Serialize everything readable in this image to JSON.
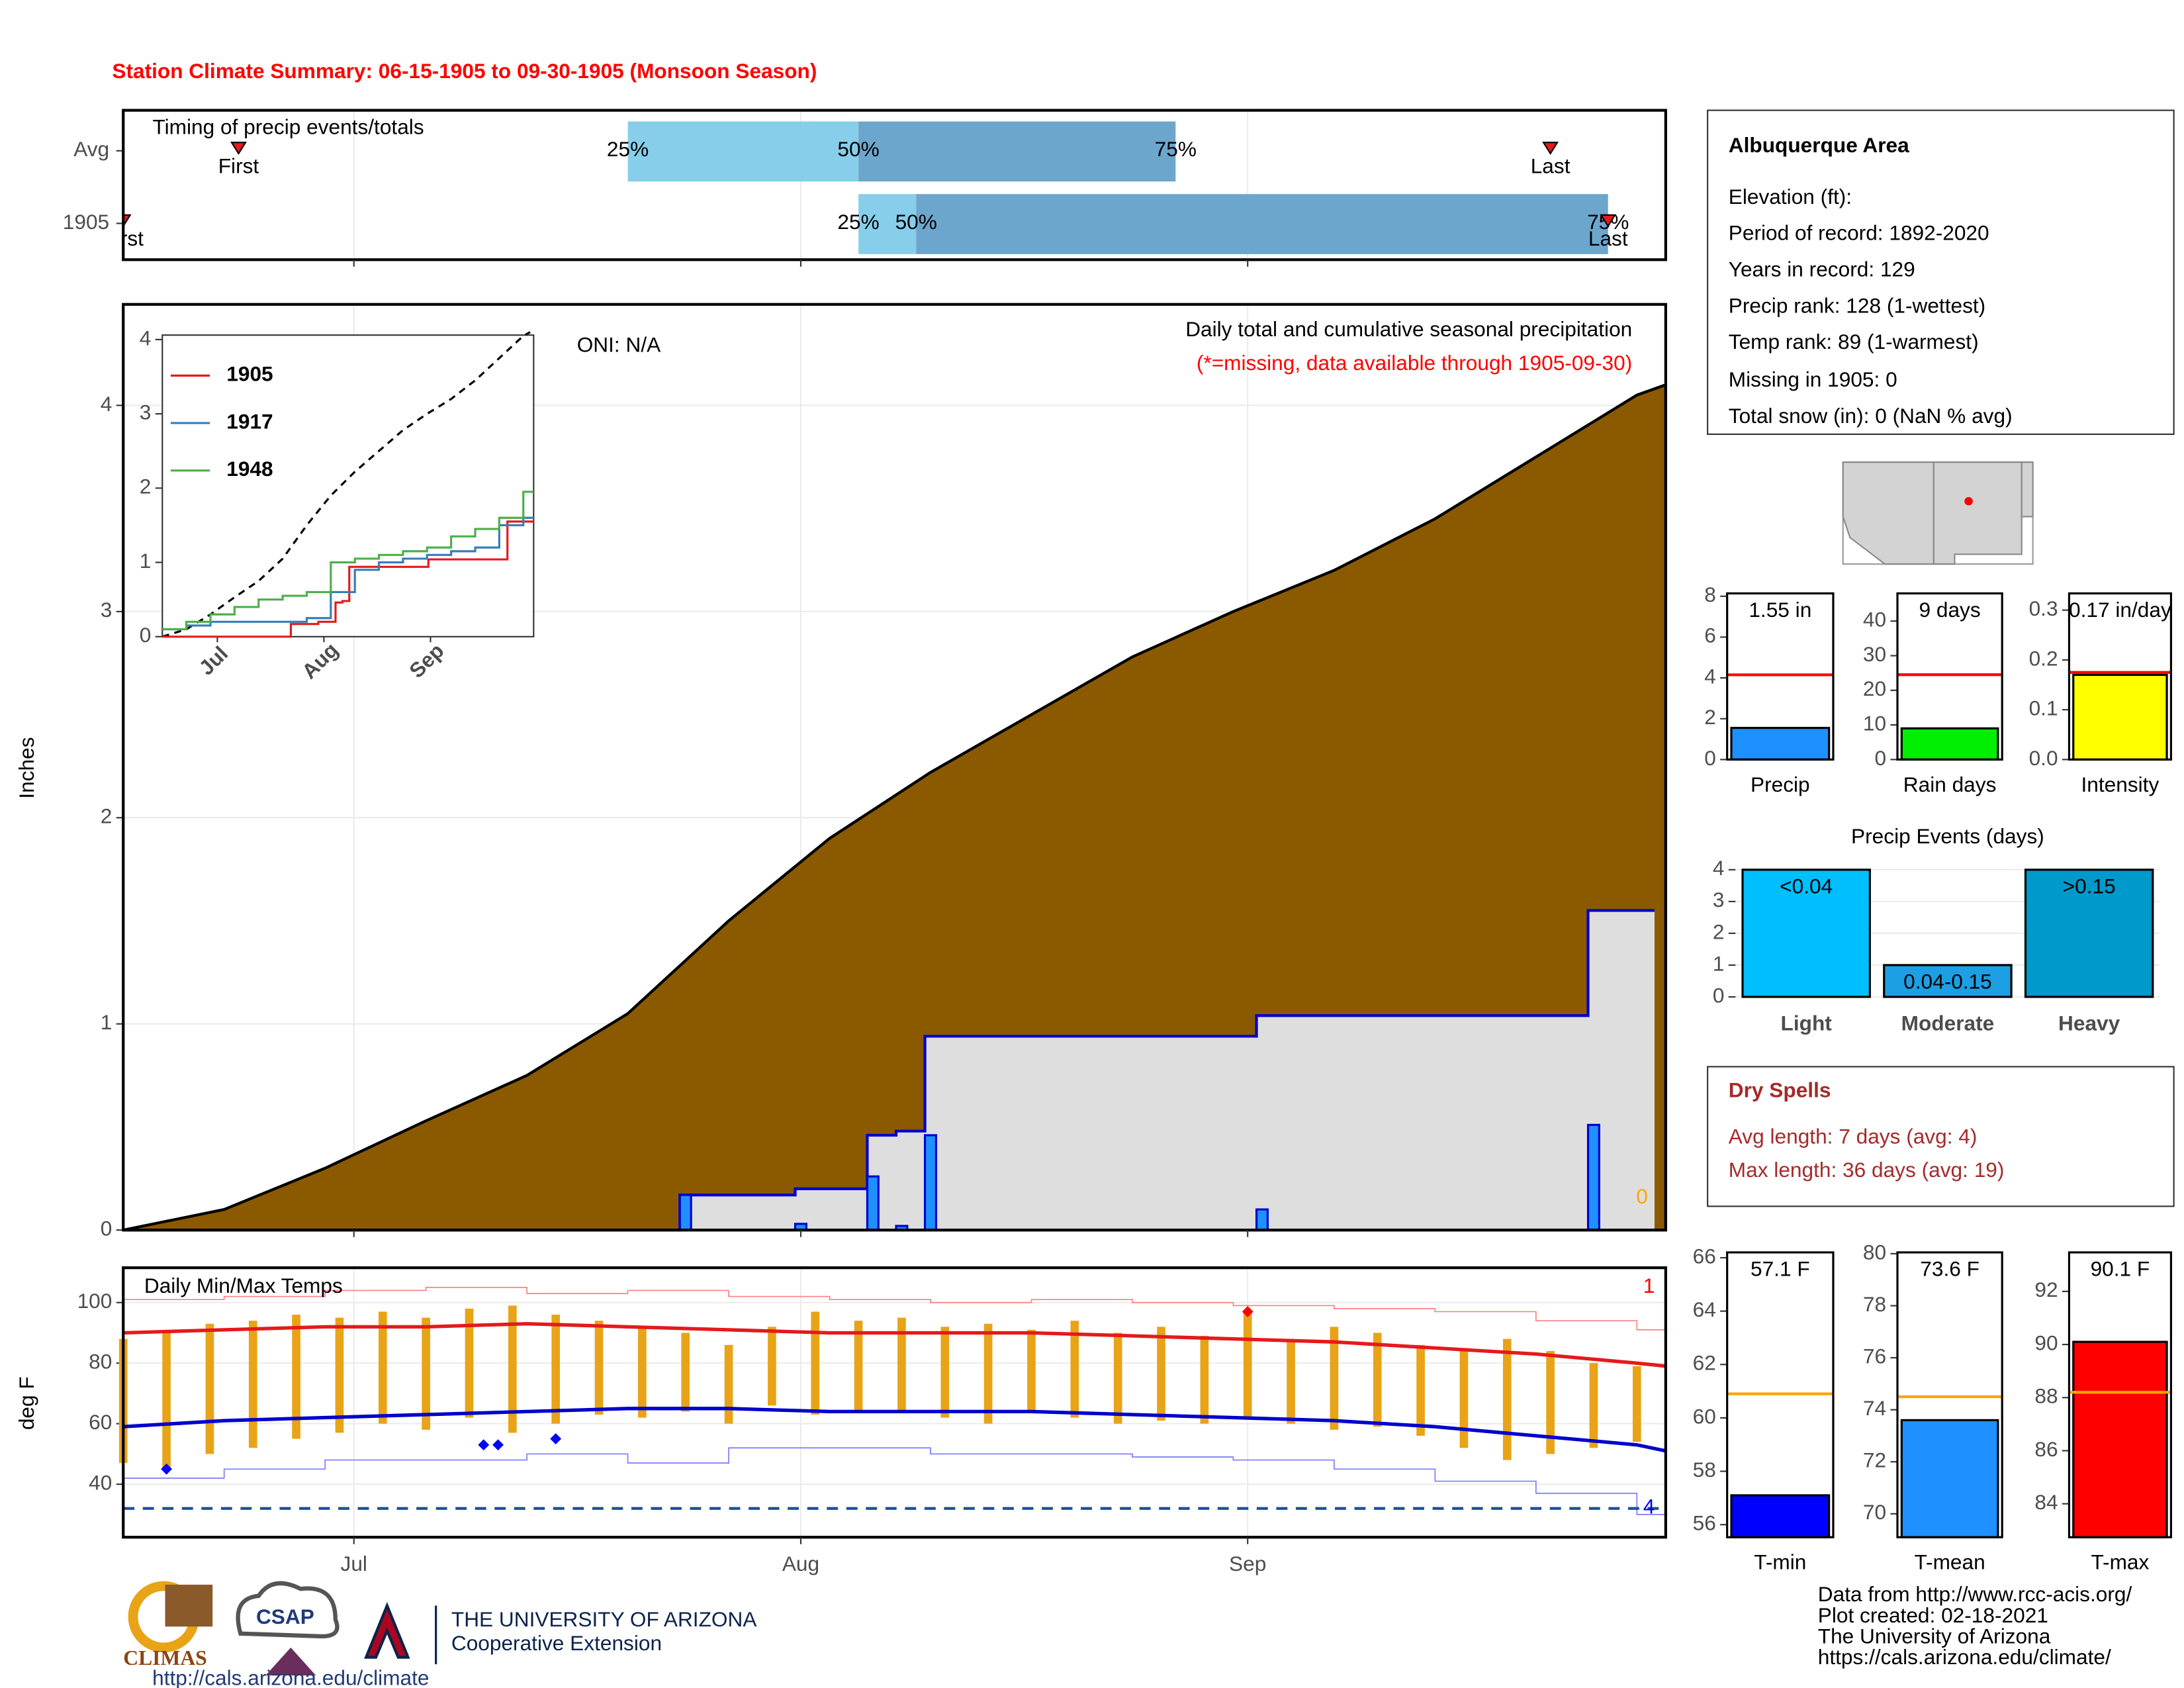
{
  "title": "Station Climate Summary: 06-15-1905 to 09-30-1905 (Monsoon Season)",
  "info": {
    "title": "Albuquerque Area",
    "lines": [
      "Elevation (ft):",
      "Period of record: 1892-2020",
      "Years in record: 129",
      "Precip rank: 128 (1-wettest)",
      "Temp rank: 89 (1-warmest)",
      "Missing in 1905: 0",
      "Total snow (in): 0 (NaN % avg)"
    ]
  },
  "dry_spells": {
    "title": "Dry Spells",
    "lines": [
      "Avg length: 7 days (avg: 4)",
      "Max length: 36 days (avg: 19)"
    ]
  },
  "footer": [
    "Data from http://www.rcc-acis.org/",
    "Plot created: 02-18-2021",
    "The University of Arizona",
    "https://cals.arizona.edu/climate/"
  ],
  "logos": {
    "climas": "CLIMAS",
    "csap": "CSAP",
    "csap_url": "http://cals.arizona.edu/climate",
    "ua": "THE UNIVERSITY OF ARIZONA",
    "ext": "Cooperative Extension"
  },
  "chart_data": [
    {
      "type": "timing",
      "title": "Timing of precip events/totals",
      "categories": [
        "Avg",
        "1905"
      ],
      "xlim": [
        "1905-06-15",
        "1905-09-30"
      ],
      "xticks": [
        "1905-07-01",
        "1905-08-01",
        "1905-09-01"
      ],
      "grid": true,
      "labels": {
        "first": "First",
        "p25": "25%",
        "p50": "50%",
        "p75": "75%",
        "last": "Last"
      },
      "colors": {
        "early": "#87ceeb",
        "late": "#6ca6cd",
        "marker": "#e41a1c"
      },
      "rows": [
        {
          "first": "1905-06-23",
          "p25": "1905-07-20",
          "p50": "1905-08-05",
          "p75": "1905-08-27",
          "last": "1905-09-22"
        },
        {
          "first": "1905-06-15",
          "p25": "1905-08-05",
          "p50": "1905-08-09",
          "p75": "1905-09-26",
          "last": "1905-09-26"
        }
      ]
    },
    {
      "type": "precip",
      "ylabel": "Inches",
      "xlim": [
        "1905-06-15",
        "1905-09-30"
      ],
      "xticks": [
        "1905-07-01",
        "1905-08-01",
        "1905-09-01"
      ],
      "ylim": [
        0,
        4.49
      ],
      "yticks": [
        0,
        1,
        2,
        3,
        4
      ],
      "grid": true,
      "annotations": {
        "oni": "ONI: N/A",
        "heading": "Daily total and cumulative seasonal precipitation",
        "note": "(*=missing, data available through 1905-09-30)",
        "missing": "0"
      },
      "normal": {
        "color": "#8b5a00",
        "x": [
          "1905-06-15",
          "1905-06-22",
          "1905-06-29",
          "1905-07-06",
          "1905-07-13",
          "1905-07-20",
          "1905-07-27",
          "1905-08-03",
          "1905-08-10",
          "1905-08-17",
          "1905-08-24",
          "1905-08-31",
          "1905-09-07",
          "1905-09-14",
          "1905-09-21",
          "1905-09-28",
          "1905-09-30"
        ],
        "values": [
          0,
          0.1,
          0.3,
          0.53,
          0.75,
          1.05,
          1.5,
          1.9,
          2.22,
          2.5,
          2.78,
          3.0,
          3.2,
          3.45,
          3.75,
          4.05,
          4.1
        ]
      },
      "daily": {
        "color": "#1e90ff",
        "line_color": "#0000cd",
        "area_color": "#dedede",
        "x": [
          "1905-07-24",
          "1905-08-01",
          "1905-08-06",
          "1905-08-08",
          "1905-08-10",
          "1905-09-02",
          "1905-09-25"
        ],
        "values": [
          0.17,
          0.03,
          0.26,
          0.02,
          0.46,
          0.1,
          0.51
        ]
      }
    },
    {
      "type": "line",
      "xlim": [
        "1905-06-15",
        "1905-10-01"
      ],
      "xticks": [
        {
          "value": "1905-07-01",
          "label": "Jul"
        },
        {
          "value": "1905-08-01",
          "label": "Aug"
        },
        {
          "value": "1905-09-01",
          "label": "Sep"
        }
      ],
      "ylim": [
        0,
        4.06
      ],
      "yticks": [
        0,
        1,
        2,
        3,
        4
      ],
      "x": [
        "1905-06-15",
        "1905-06-22",
        "1905-06-29",
        "1905-07-06",
        "1905-07-13",
        "1905-07-20",
        "1905-07-27",
        "1905-08-03",
        "1905-08-10",
        "1905-08-17",
        "1905-08-24",
        "1905-08-31",
        "1905-09-07",
        "1905-09-14",
        "1905-09-21",
        "1905-09-28",
        "1905-09-30"
      ],
      "series": [
        {
          "name": "1905",
          "color": "#e41a1c"
        },
        {
          "name": "1917",
          "color": "#377eb8",
          "values": [
            0.1,
            0.15,
            0.2,
            0.2,
            0.2,
            0.2,
            0.25,
            0.6,
            0.9,
            1.0,
            1.05,
            1.1,
            1.15,
            1.2,
            1.5,
            1.6,
            1.6
          ]
        },
        {
          "name": "1948",
          "color": "#4daf4a",
          "values": [
            0.1,
            0.2,
            0.3,
            0.4,
            0.5,
            0.55,
            0.6,
            1.0,
            1.05,
            1.1,
            1.15,
            1.2,
            1.35,
            1.45,
            1.6,
            1.95,
            1.95
          ]
        }
      ]
    },
    {
      "type": "temps",
      "title": "Daily Min/Max Temps",
      "ylabel": "deg F",
      "xlim": [
        "1905-06-15",
        "1905-09-30"
      ],
      "xticks": [
        {
          "value": "1905-07-01",
          "label": "Jul"
        },
        {
          "value": "1905-08-01",
          "label": "Aug"
        },
        {
          "value": "1905-09-01",
          "label": "Sep"
        }
      ],
      "ylim": [
        22.5,
        111.5
      ],
      "yticks": [
        40,
        60,
        80,
        100
      ],
      "grid": true,
      "freeze": 32,
      "annotations": {
        "highs": "1",
        "lows": "4"
      },
      "daily": {
        "color": "#e8a317",
        "x": [
          "1905-06-15",
          "1905-06-18",
          "1905-06-21",
          "1905-06-24",
          "1905-06-27",
          "1905-06-30",
          "1905-07-03",
          "1905-07-06",
          "1905-07-09",
          "1905-07-12",
          "1905-07-15",
          "1905-07-18",
          "1905-07-21",
          "1905-07-24",
          "1905-07-27",
          "1905-07-30",
          "1905-08-02",
          "1905-08-05",
          "1905-08-08",
          "1905-08-11",
          "1905-08-14",
          "1905-08-17",
          "1905-08-20",
          "1905-08-23",
          "1905-08-26",
          "1905-08-29",
          "1905-09-01",
          "1905-09-04",
          "1905-09-07",
          "1905-09-10",
          "1905-09-13",
          "1905-09-16",
          "1905-09-19",
          "1905-09-22",
          "1905-09-25",
          "1905-09-28"
        ],
        "max": [
          88,
          90,
          93,
          94,
          96,
          95,
          97,
          95,
          98,
          99,
          96,
          94,
          92,
          90,
          86,
          92,
          97,
          94,
          95,
          92,
          93,
          91,
          94,
          90,
          92,
          89,
          97,
          88,
          92,
          90,
          86,
          85,
          88,
          84,
          80,
          79
        ],
        "min": [
          47,
          45,
          50,
          52,
          55,
          57,
          60,
          58,
          62,
          57,
          60,
          63,
          62,
          64,
          60,
          66,
          63,
          64,
          64,
          62,
          60,
          64,
          62,
          60,
          61,
          60,
          62,
          60,
          58,
          59,
          56,
          52,
          48,
          50,
          52,
          54
        ]
      },
      "normal": {
        "max_color": "#e41a1c",
        "min_color": "#0000cd",
        "x": [
          "1905-06-15",
          "1905-06-22",
          "1905-06-29",
          "1905-07-06",
          "1905-07-13",
          "1905-07-20",
          "1905-07-27",
          "1905-08-03",
          "1905-08-10",
          "1905-08-17",
          "1905-08-24",
          "1905-08-31",
          "1905-09-07",
          "1905-09-14",
          "1905-09-21",
          "1905-09-28",
          "1905-09-30"
        ],
        "max": [
          90,
          91,
          92,
          92,
          93,
          92,
          91,
          90,
          90,
          90,
          89,
          88,
          87,
          85,
          83,
          80,
          79
        ],
        "min": [
          59,
          61,
          62,
          63,
          64,
          65,
          65,
          64,
          64,
          64,
          63,
          62,
          61,
          59,
          56,
          53,
          51
        ]
      },
      "record": {
        "max_color": "#ff8080",
        "min_color": "#7b7bff",
        "x": [
          "1905-06-15",
          "1905-06-22",
          "1905-06-29",
          "1905-07-06",
          "1905-07-13",
          "1905-07-20",
          "1905-07-27",
          "1905-08-03",
          "1905-08-10",
          "1905-08-17",
          "1905-08-24",
          "1905-08-31",
          "1905-09-07",
          "1905-09-14",
          "1905-09-21",
          "1905-09-28",
          "1905-09-30"
        ],
        "max": [
          101,
          102,
          104,
          105,
          103,
          104,
          102,
          101,
          100,
          101,
          100,
          99,
          98,
          97,
          94,
          91,
          90
        ],
        "min": [
          42,
          45,
          48,
          48,
          50,
          47,
          52,
          52,
          50,
          50,
          49,
          48,
          45,
          41,
          37,
          30,
          33
        ]
      },
      "record_lows": {
        "x": [
          "1905-06-18",
          "1905-07-10",
          "1905-07-11",
          "1905-07-15"
        ],
        "values": [
          45,
          53,
          53,
          55
        ],
        "color": "#0000ff"
      },
      "record_highs": {
        "x": [
          "1905-09-01"
        ],
        "values": [
          97
        ],
        "color": "#ff0000"
      }
    },
    {
      "type": "summary_bar",
      "xlabel": "Precip",
      "value": 1.55,
      "value_label": "1.55 in",
      "average": 4.15,
      "color": "#1e90ff",
      "avg_color": "#ff0000",
      "ylim": [
        0,
        8.14
      ],
      "yticks": [
        0,
        2,
        4,
        6,
        8
      ]
    },
    {
      "type": "summary_bar",
      "xlabel": "Rain days",
      "value": 9,
      "value_label": "9 days",
      "average": 24.5,
      "color": "#00ee00",
      "avg_color": "#ff0000",
      "ylim": [
        0,
        48
      ],
      "yticks": [
        0,
        10,
        20,
        30,
        40
      ]
    },
    {
      "type": "summary_bar",
      "xlabel": "Intensity",
      "value": 0.17,
      "value_label": "0.17 in/day",
      "average": 0.175,
      "color": "#ffff00",
      "avg_color": "#ff0000",
      "ylim": [
        0,
        0.3336
      ],
      "yticks": [
        {
          "value": 0,
          "label": "0.0"
        },
        0.1,
        0.2,
        0.3
      ]
    },
    {
      "type": "bar",
      "title": "Precip Events (days)",
      "categories": [
        "Light",
        "Moderate",
        "Heavy"
      ],
      "values": [
        4,
        1,
        4
      ],
      "bin_labels": [
        "<0.04",
        "0.04-0.15",
        ">0.15"
      ],
      "colors": [
        "#00bfff",
        "#1c9fe3",
        "#0099cc"
      ],
      "ylim": [
        0,
        4.26
      ],
      "yticks": [
        0,
        1,
        2,
        3,
        4
      ],
      "grid": true
    },
    {
      "type": "summary_bar",
      "xlabel": "T-min",
      "value": 57.1,
      "value_label": "57.1 F",
      "average": 60.9,
      "color": "#0000ff",
      "avg_color": "#ffa500",
      "ylim": [
        55.53,
        66.2
      ],
      "yticks": [
        56,
        58,
        60,
        62,
        64,
        66
      ]
    },
    {
      "type": "summary_bar",
      "xlabel": "T-mean",
      "value": 73.6,
      "value_label": "73.6 F",
      "average": 74.5,
      "color": "#1e90ff",
      "avg_color": "#ffa500",
      "ylim": [
        69.1,
        80.05
      ],
      "yticks": [
        70,
        72,
        74,
        76,
        78,
        80
      ]
    },
    {
      "type": "summary_bar",
      "xlabel": "T-max",
      "value": 90.1,
      "value_label": "90.1 F",
      "average": 88.2,
      "color": "#ff0000",
      "avg_color": "#ffa500",
      "ylim": [
        82.74,
        93.47
      ],
      "yticks": [
        84,
        86,
        88,
        90,
        92
      ]
    }
  ]
}
